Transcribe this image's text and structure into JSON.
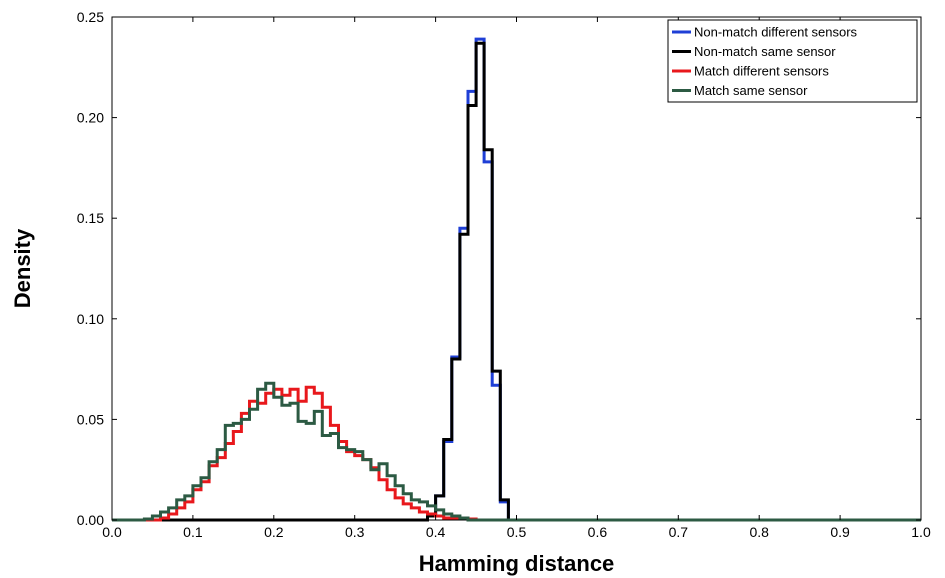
{
  "chart_data": {
    "type": "line",
    "xlabel": "Hamming distance",
    "ylabel": "Density",
    "xlim": [
      0.0,
      1.0
    ],
    "ylim": [
      0.0,
      0.25
    ],
    "xticks": [
      "0.0",
      "0.1",
      "0.2",
      "0.3",
      "0.4",
      "0.5",
      "0.6",
      "0.7",
      "0.8",
      "0.9",
      "1.0"
    ],
    "yticks": [
      "0.00",
      "0.05",
      "0.10",
      "0.15",
      "0.20",
      "0.25"
    ],
    "legend_position": "top-right",
    "grid": false,
    "bin_width": 0.01,
    "series": [
      {
        "name": "Non-match different sensors",
        "color": "#1f3fd6",
        "x": [
          0.38,
          0.39,
          0.4,
          0.41,
          0.42,
          0.43,
          0.44,
          0.45,
          0.46,
          0.47,
          0.48,
          0.49
        ],
        "y": [
          0.0,
          0.002,
          0.012,
          0.039,
          0.081,
          0.145,
          0.213,
          0.239,
          0.178,
          0.067,
          0.009,
          0.0
        ]
      },
      {
        "name": "Non-match same sensor",
        "color": "#000000",
        "x": [
          0.38,
          0.39,
          0.4,
          0.41,
          0.42,
          0.43,
          0.44,
          0.45,
          0.46,
          0.47,
          0.48,
          0.49
        ],
        "y": [
          0.0,
          0.002,
          0.012,
          0.04,
          0.08,
          0.142,
          0.206,
          0.237,
          0.184,
          0.074,
          0.01,
          0.0
        ]
      },
      {
        "name": "Match different sensors",
        "color": "#e8181c",
        "x": [
          0.06,
          0.07,
          0.08,
          0.09,
          0.1,
          0.11,
          0.12,
          0.13,
          0.14,
          0.15,
          0.16,
          0.17,
          0.18,
          0.19,
          0.2,
          0.21,
          0.22,
          0.23,
          0.24,
          0.25,
          0.26,
          0.27,
          0.28,
          0.29,
          0.3,
          0.31,
          0.32,
          0.33,
          0.34,
          0.35,
          0.36,
          0.37,
          0.38,
          0.39,
          0.4,
          0.41,
          0.42,
          0.43,
          0.44,
          0.45
        ],
        "y": [
          0.001,
          0.003,
          0.006,
          0.009,
          0.015,
          0.019,
          0.027,
          0.031,
          0.038,
          0.044,
          0.053,
          0.059,
          0.058,
          0.063,
          0.065,
          0.062,
          0.065,
          0.059,
          0.066,
          0.063,
          0.056,
          0.047,
          0.039,
          0.034,
          0.032,
          0.03,
          0.026,
          0.02,
          0.015,
          0.011,
          0.008,
          0.006,
          0.004,
          0.003,
          0.002,
          0.001,
          0.001,
          0.001,
          0.0005,
          0.0
        ]
      },
      {
        "name": "Match same sensor",
        "color": "#2c5a43",
        "x": [
          0.04,
          0.05,
          0.06,
          0.07,
          0.08,
          0.09,
          0.1,
          0.11,
          0.12,
          0.13,
          0.14,
          0.15,
          0.16,
          0.17,
          0.18,
          0.19,
          0.2,
          0.21,
          0.22,
          0.23,
          0.24,
          0.25,
          0.26,
          0.27,
          0.28,
          0.29,
          0.3,
          0.31,
          0.32,
          0.33,
          0.34,
          0.35,
          0.36,
          0.37,
          0.38,
          0.39,
          0.4,
          0.41,
          0.42,
          0.43,
          0.44
        ],
        "y": [
          0.0005,
          0.002,
          0.004,
          0.006,
          0.01,
          0.012,
          0.017,
          0.021,
          0.029,
          0.035,
          0.047,
          0.048,
          0.05,
          0.055,
          0.065,
          0.068,
          0.061,
          0.057,
          0.058,
          0.049,
          0.048,
          0.054,
          0.042,
          0.043,
          0.036,
          0.035,
          0.034,
          0.03,
          0.025,
          0.028,
          0.022,
          0.017,
          0.013,
          0.01,
          0.009,
          0.007,
          0.005,
          0.003,
          0.002,
          0.001,
          0.0
        ]
      }
    ]
  }
}
